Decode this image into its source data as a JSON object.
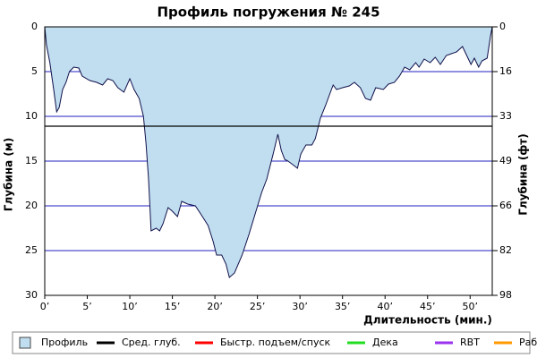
{
  "chart_data": {
    "type": "area",
    "title": "Профиль погружения № 245",
    "xlabel": "Длительность (мин.)",
    "ylabel": "Глубина (м)",
    "y2label": "Глубина (фт)",
    "inverted_y": true,
    "grid": true,
    "grid_color": "#2020c0",
    "xlim": [
      0,
      52.6
    ],
    "ylim": [
      0,
      30
    ],
    "y2lim": [
      0,
      98.4
    ],
    "xticks": [
      {
        "value": 0,
        "label": "0’"
      },
      {
        "value": 5,
        "label": "5’"
      },
      {
        "value": 10,
        "label": "10’"
      },
      {
        "value": 15,
        "label": "15’"
      },
      {
        "value": 20,
        "label": "20’"
      },
      {
        "value": 25,
        "label": "25’"
      },
      {
        "value": 30,
        "label": "30’"
      },
      {
        "value": 35,
        "label": "35’"
      },
      {
        "value": 40,
        "label": "40’"
      },
      {
        "value": 45,
        "label": "45’"
      },
      {
        "value": 50,
        "label": "50’"
      }
    ],
    "yticks": [
      0,
      5,
      10,
      15,
      20,
      25,
      30
    ],
    "y2ticks": [
      {
        "value": 0,
        "label": "0"
      },
      {
        "value": 16.4,
        "label": "16"
      },
      {
        "value": 32.8,
        "label": "33"
      },
      {
        "value": 49.2,
        "label": "49"
      },
      {
        "value": 65.6,
        "label": "66"
      },
      {
        "value": 82,
        "label": "82"
      },
      {
        "value": 98.4,
        "label": "98"
      }
    ],
    "x": [
      0,
      0.2,
      0.6,
      1.05,
      1.4,
      1.7,
      2.1,
      2.5,
      2.9,
      3.4,
      4,
      4.4,
      5.3,
      6.1,
      6.8,
      7.4,
      8,
      8.6,
      9.3,
      10,
      10.5,
      11.1,
      11.6,
      11.9,
      12.2,
      12.5,
      13.1,
      13.5,
      13.9,
      14.5,
      15,
      15.6,
      16.1,
      16.8,
      17.7,
      18.4,
      19.2,
      19.8,
      20.2,
      20.8,
      21.3,
      21.7,
      22.3,
      23.2,
      24,
      24.7,
      25.5,
      26.1,
      26.5,
      26.9,
      27.4,
      27.8,
      28.2,
      28.6,
      29.3,
      29.7,
      30.1,
      30.7,
      31.4,
      31.8,
      32.4,
      33,
      33.5,
      33.9,
      34.3,
      35,
      35.8,
      36.4,
      37.1,
      37.7,
      38.3,
      38.9,
      39.8,
      40.4,
      41.1,
      41.7,
      42.3,
      42.9,
      43.6,
      44,
      44.6,
      45.3,
      45.9,
      46.5,
      47.2,
      47.8,
      48.4,
      49.1,
      49.5,
      50.1,
      50.5,
      51,
      51.4,
      52,
      52.4,
      52.6
    ],
    "series": [
      {
        "name": "Профиль",
        "color": "#c0def0",
        "line_color": "#10104a",
        "values": [
          0,
          2,
          4,
          7,
          9.5,
          9,
          7,
          6.2,
          5,
          4.5,
          4.6,
          5.5,
          6,
          6.2,
          6.5,
          5.8,
          6,
          6.8,
          7.3,
          5.8,
          7,
          8,
          10,
          13,
          17,
          22.8,
          22.5,
          22.8,
          22,
          20.2,
          20.6,
          21.2,
          19.5,
          19.8,
          20,
          21,
          22.2,
          24,
          25.5,
          25.5,
          26.5,
          28,
          27.5,
          25.5,
          23.2,
          21,
          18.5,
          17,
          15.5,
          14,
          12,
          13.8,
          14.8,
          15,
          15.5,
          15.8,
          14.2,
          13.2,
          13.2,
          12.5,
          10.2,
          8.8,
          7.5,
          6.5,
          7,
          6.8,
          6.6,
          6.2,
          6.8,
          8,
          8.2,
          6.8,
          7,
          6.4,
          6.2,
          5.5,
          4.5,
          4.8,
          4,
          4.5,
          3.6,
          4,
          3.4,
          4.2,
          3.2,
          3,
          2.8,
          2.2,
          3,
          4.2,
          3.5,
          4.5,
          3.8,
          3.5,
          1,
          0
        ]
      },
      {
        "name": "Сред. глуб.",
        "color": "#000000",
        "value": 11.1
      }
    ],
    "legend_items": [
      {
        "name": "Быстр. подъем/спуск",
        "color": "#ff0000"
      },
      {
        "name": "Дека",
        "color": "#22dd22"
      },
      {
        "name": "RBT",
        "color": "#9933ee"
      },
      {
        "name": "Раб.",
        "color": "#ff9900"
      }
    ]
  }
}
